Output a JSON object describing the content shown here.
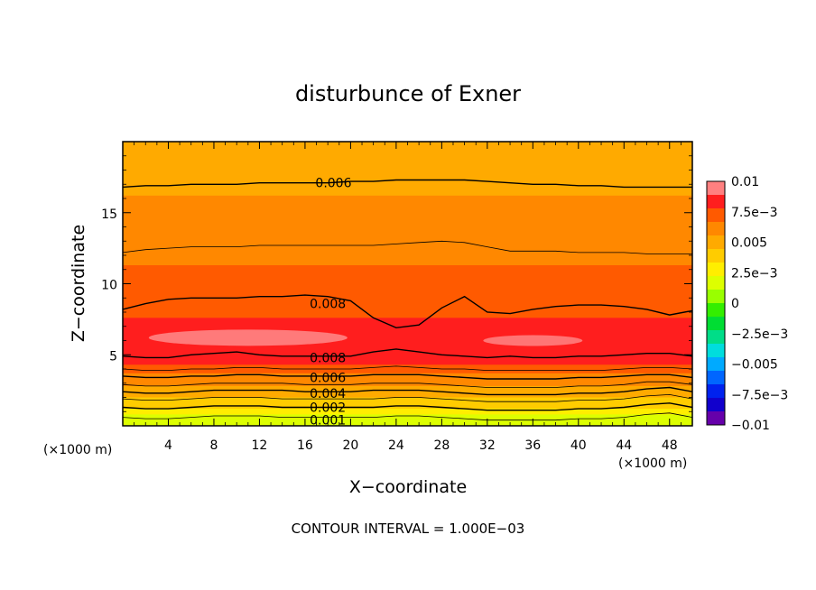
{
  "chart_data": {
    "type": "contour",
    "title": "disturbunce of Exner",
    "xlabel": "X−coordinate",
    "ylabel": "Z−coordinate",
    "x_unit": "(×1000 m)",
    "y_unit": "(×1000 m)",
    "xlim": [
      0,
      50
    ],
    "ylim": [
      0,
      20
    ],
    "x_ticks": [
      4,
      8,
      12,
      16,
      20,
      24,
      28,
      32,
      36,
      40,
      44,
      48
    ],
    "x_tick_labels": [
      "4",
      "8",
      "12",
      "16",
      "20",
      "24",
      "28",
      "32",
      "36",
      "40",
      "44",
      "48"
    ],
    "y_ticks": [
      5,
      10,
      15
    ],
    "y_tick_labels": [
      "5",
      "10",
      "15"
    ],
    "note": "CONTOUR INTERVAL = 1.000E−03",
    "colorbar": {
      "range": [
        -0.01,
        0.01
      ],
      "tick_labels": [
        "0.01",
        "7.5e−3",
        "0.005",
        "2.5e−3",
        "0",
        "−2.5e−3",
        "−0.005",
        "−7.5e−3",
        "−0.01"
      ],
      "colors": [
        "#ff8080",
        "#ff1e1e",
        "#ff5a00",
        "#ff8800",
        "#ffaa00",
        "#ffcc00",
        "#ffee00",
        "#ddff00",
        "#99ff00",
        "#33ee00",
        "#00dd33",
        "#00dd88",
        "#00dddd",
        "#00aaff",
        "#0066ff",
        "#0022ee",
        "#1100cc",
        "#6600aa"
      ]
    },
    "contour_labels": [
      {
        "text": "0.006",
        "x": 18.5,
        "z": 17.1
      },
      {
        "text": "0.008",
        "x": 18.0,
        "z": 8.6
      },
      {
        "text": "0.008",
        "x": 18.0,
        "z": 4.8
      },
      {
        "text": "0.006",
        "x": 18.0,
        "z": 3.4
      },
      {
        "text": "0.004",
        "x": 18.0,
        "z": 2.3
      },
      {
        "text": "0.002",
        "x": 18.0,
        "z": 1.3
      },
      {
        "text": "0.001",
        "x": 18.0,
        "z": 0.4
      }
    ],
    "contour_x": [
      0,
      2,
      4,
      6,
      8,
      10,
      12,
      14,
      16,
      18,
      20,
      22,
      24,
      26,
      28,
      30,
      32,
      34,
      36,
      38,
      40,
      42,
      44,
      46,
      48,
      50
    ],
    "contours": [
      {
        "level": 0.006,
        "z": [
          16.8,
          16.9,
          16.9,
          17.0,
          17.0,
          17.0,
          17.1,
          17.1,
          17.1,
          17.1,
          17.2,
          17.2,
          17.3,
          17.3,
          17.3,
          17.3,
          17.2,
          17.1,
          17.0,
          17.0,
          16.9,
          16.9,
          16.8,
          16.8,
          16.8,
          16.8
        ]
      },
      {
        "level": 0.007,
        "z": [
          12.2,
          12.4,
          12.5,
          12.6,
          12.6,
          12.6,
          12.7,
          12.7,
          12.7,
          12.7,
          12.7,
          12.7,
          12.8,
          12.9,
          13.0,
          12.9,
          12.6,
          12.3,
          12.3,
          12.3,
          12.2,
          12.2,
          12.2,
          12.1,
          12.1,
          12.1
        ]
      },
      {
        "level": 0.008,
        "z": [
          8.2,
          8.6,
          8.9,
          9.0,
          9.0,
          9.0,
          9.1,
          9.1,
          9.2,
          9.1,
          8.8,
          7.6,
          6.9,
          7.1,
          8.3,
          9.1,
          8.0,
          7.9,
          8.2,
          8.4,
          8.5,
          8.5,
          8.4,
          8.2,
          7.8,
          8.1
        ]
      },
      {
        "level": 0.008,
        "z": [
          4.9,
          4.8,
          4.8,
          5.0,
          5.1,
          5.2,
          5.0,
          4.9,
          4.9,
          4.9,
          4.9,
          5.2,
          5.4,
          5.2,
          5.0,
          4.9,
          4.8,
          4.9,
          4.8,
          4.8,
          4.9,
          4.9,
          5.0,
          5.1,
          5.1,
          4.9
        ]
      },
      {
        "level": 0.007,
        "z": [
          4.0,
          3.9,
          3.9,
          4.0,
          4.0,
          4.1,
          4.1,
          4.0,
          4.0,
          4.0,
          4.0,
          4.1,
          4.2,
          4.1,
          4.0,
          4.0,
          3.9,
          3.9,
          3.9,
          3.9,
          3.9,
          3.9,
          4.0,
          4.1,
          4.1,
          4.0
        ]
      },
      {
        "level": 0.006,
        "z": [
          3.5,
          3.4,
          3.4,
          3.5,
          3.5,
          3.6,
          3.6,
          3.5,
          3.5,
          3.5,
          3.5,
          3.6,
          3.6,
          3.6,
          3.5,
          3.4,
          3.3,
          3.3,
          3.3,
          3.3,
          3.4,
          3.4,
          3.5,
          3.6,
          3.6,
          3.4
        ]
      },
      {
        "level": 0.005,
        "z": [
          2.9,
          2.8,
          2.8,
          2.9,
          3.0,
          3.0,
          3.0,
          3.0,
          2.9,
          2.9,
          2.9,
          3.0,
          3.0,
          3.0,
          2.9,
          2.8,
          2.7,
          2.7,
          2.7,
          2.7,
          2.8,
          2.8,
          2.9,
          3.1,
          3.1,
          2.9
        ]
      },
      {
        "level": 0.004,
        "z": [
          2.4,
          2.3,
          2.3,
          2.4,
          2.5,
          2.5,
          2.5,
          2.5,
          2.4,
          2.4,
          2.4,
          2.5,
          2.5,
          2.5,
          2.4,
          2.3,
          2.2,
          2.2,
          2.2,
          2.2,
          2.3,
          2.3,
          2.4,
          2.6,
          2.7,
          2.4
        ]
      },
      {
        "level": 0.003,
        "z": [
          1.9,
          1.8,
          1.8,
          1.9,
          2.0,
          2.0,
          2.0,
          1.9,
          1.9,
          1.9,
          1.9,
          1.9,
          2.0,
          2.0,
          1.9,
          1.8,
          1.7,
          1.7,
          1.7,
          1.7,
          1.8,
          1.8,
          1.9,
          2.1,
          2.2,
          1.9
        ]
      },
      {
        "level": 0.002,
        "z": [
          1.3,
          1.2,
          1.2,
          1.3,
          1.4,
          1.4,
          1.4,
          1.3,
          1.3,
          1.3,
          1.3,
          1.3,
          1.4,
          1.4,
          1.3,
          1.2,
          1.1,
          1.1,
          1.1,
          1.1,
          1.2,
          1.2,
          1.3,
          1.5,
          1.6,
          1.3
        ]
      },
      {
        "level": 0.001,
        "z": [
          0.6,
          0.5,
          0.5,
          0.6,
          0.7,
          0.7,
          0.7,
          0.6,
          0.6,
          0.6,
          0.6,
          0.6,
          0.7,
          0.7,
          0.6,
          0.5,
          0.4,
          0.4,
          0.4,
          0.4,
          0.5,
          0.5,
          0.6,
          0.8,
          0.9,
          0.6
        ]
      }
    ],
    "field_bands": [
      {
        "value": 0.0045,
        "top": 20
      },
      {
        "value": 0.0052,
        "top": 18.6
      },
      {
        "value": 0.0058,
        "top": 16.2
      },
      {
        "value": 0.0064,
        "top": 14.4
      },
      {
        "value": 0.0072,
        "top": 11.3
      },
      {
        "value": 0.0084,
        "top": 7.6
      },
      {
        "value": 0.0079,
        "top": 5.3
      },
      {
        "value": 0.0074,
        "top": 4.3
      },
      {
        "value": 0.0066,
        "top": 3.7
      },
      {
        "value": 0.006,
        "top": 3.2
      },
      {
        "value": 0.0054,
        "top": 2.8
      },
      {
        "value": 0.0047,
        "top": 2.4
      },
      {
        "value": 0.0041,
        "top": 2.0
      },
      {
        "value": 0.0034,
        "top": 1.6
      },
      {
        "value": 0.0027,
        "top": 1.2
      },
      {
        "value": 0.002,
        "top": 0.8
      },
      {
        "value": 0.0012,
        "top": 0.4
      }
    ]
  }
}
